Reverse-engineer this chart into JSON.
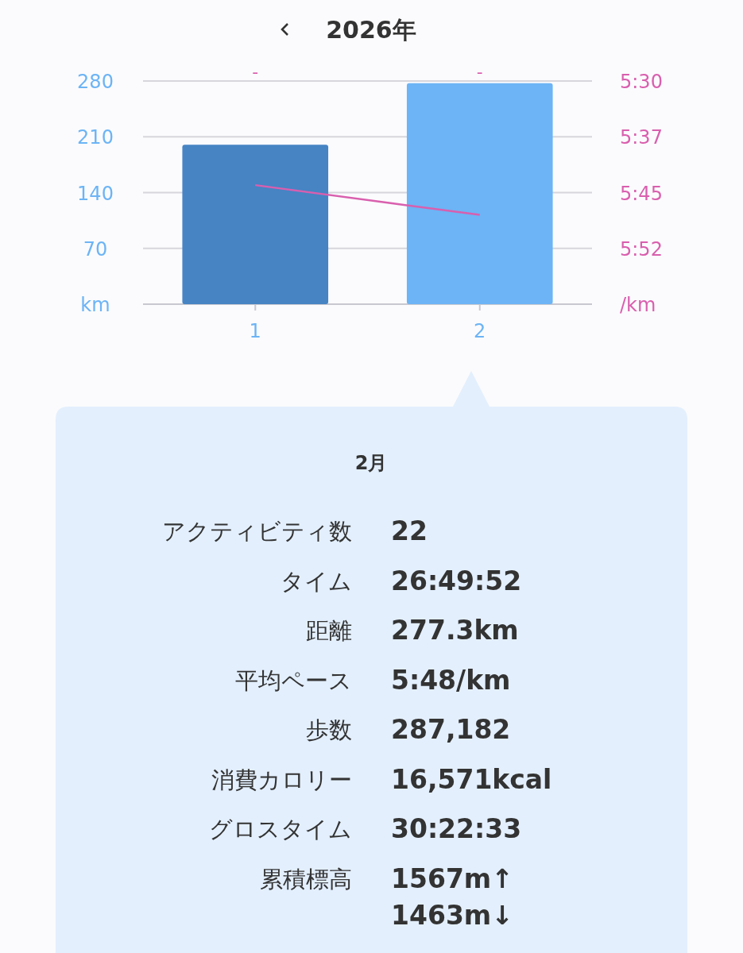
{
  "chart_data": {
    "type": "bar",
    "title": "2026年",
    "categories": [
      "1",
      "2"
    ],
    "series": [
      {
        "colors": [
          "#4684c4",
          "#6cb4f5"
        ],
        "values": [
          200,
          277.3
        ]
      },
      {
        "type": "line",
        "axis": "y2",
        "color": "#d95fae",
        "values": [
          344,
          348
        ]
      }
    ],
    "ylim": [
      0,
      280
    ],
    "yticks": [
      {
        "value": 0,
        "label": "km"
      },
      70,
      140,
      210,
      280
    ],
    "y2lim": [
      360,
      330
    ],
    "y2ticks": [
      {
        "value": 330,
        "label": "5:30"
      },
      {
        "value": 337.5,
        "label": "5:37"
      },
      {
        "value": 345,
        "label": "5:45"
      },
      {
        "value": 352.5,
        "label": "5:52"
      },
      {
        "value": 360,
        "label": "/km"
      }
    ],
    "grid": "y",
    "annotations": [
      "-",
      "-",
      "2月",
      "アクティビティ数",
      "22",
      "タイム",
      "26:49:52",
      "距離",
      "277.3km",
      "平均ペース",
      "5:48/km",
      "歩数",
      "287,182",
      "消費カロリー",
      "16,571kcal",
      "グロスタイム",
      "30:22:33",
      "累積標高",
      "1567m↑\n1463m↓"
    ]
  }
}
